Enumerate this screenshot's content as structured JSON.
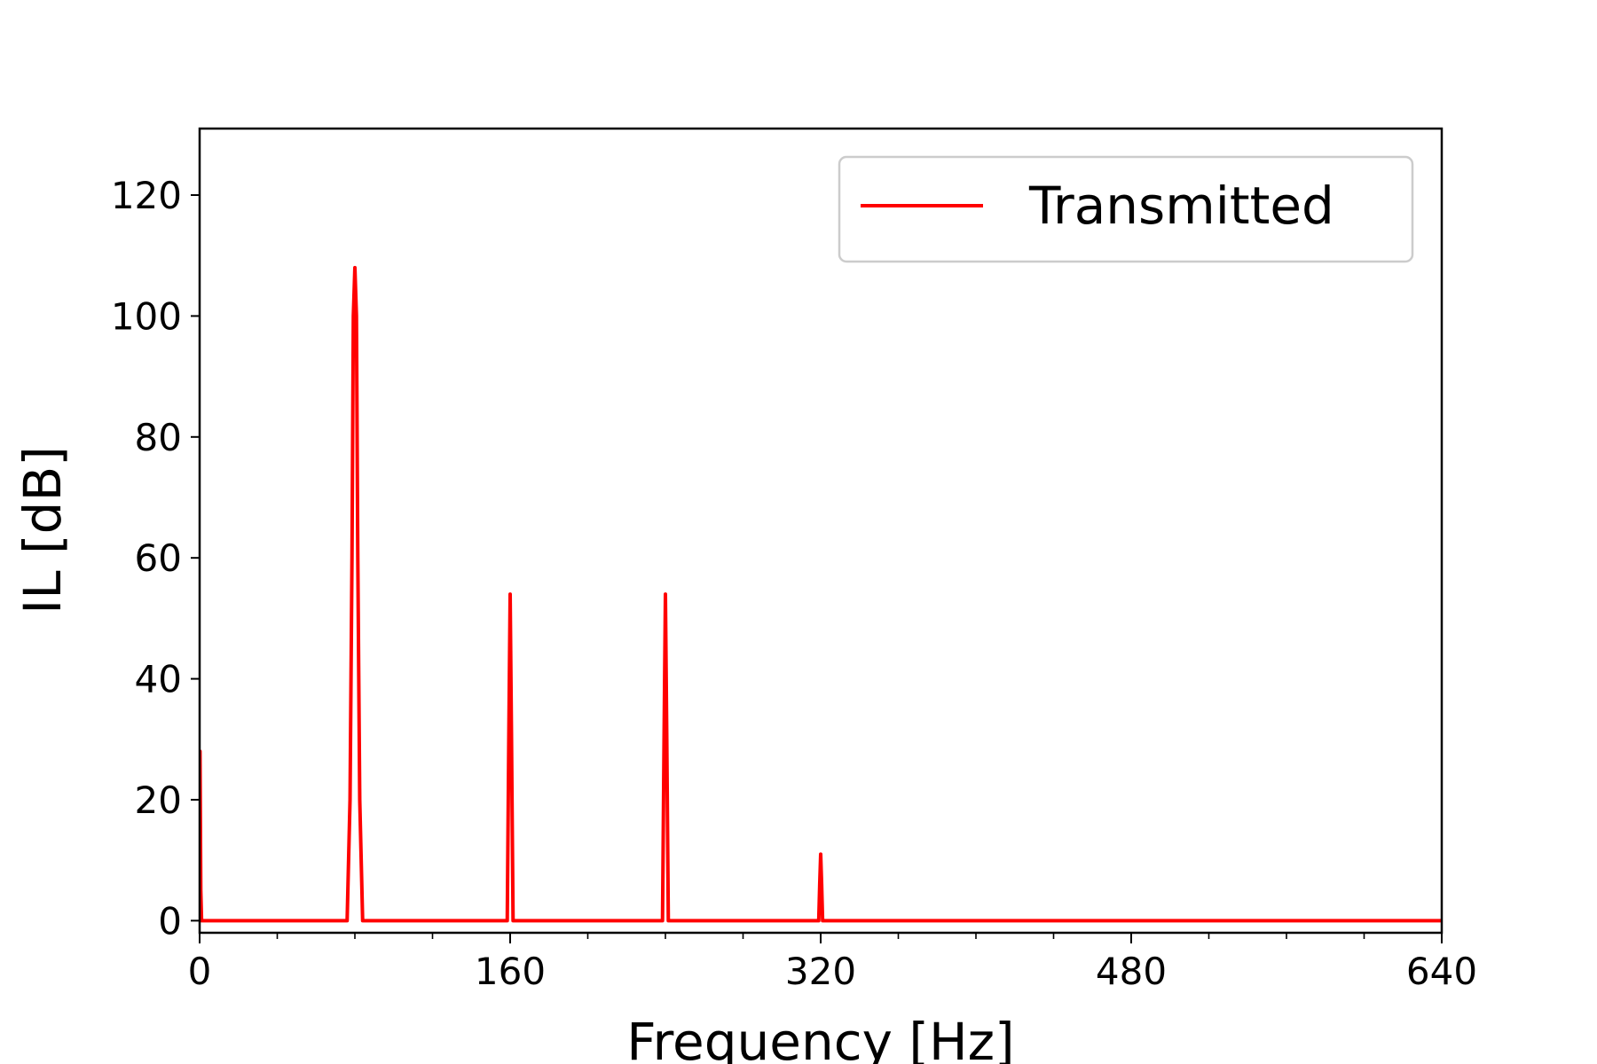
{
  "chart_data": {
    "type": "line",
    "xlabel": "Frequency [Hz]",
    "ylabel": "IL [dB]",
    "xlim": [
      0,
      640
    ],
    "ylim": [
      -2,
      131
    ],
    "x_ticks": [
      0,
      160,
      320,
      480,
      640
    ],
    "x_tick_labels": [
      "0",
      "160",
      "320",
      "480",
      "640"
    ],
    "x_minor_ticks": [
      40,
      80,
      120,
      200,
      240,
      280,
      360,
      400,
      440,
      520,
      560,
      600
    ],
    "y_ticks": [
      0,
      20,
      40,
      60,
      80,
      100,
      120
    ],
    "y_tick_labels": [
      "0",
      "20",
      "40",
      "60",
      "80",
      "100",
      "120"
    ],
    "grid": false,
    "legend_position": "top-right",
    "series": [
      {
        "name": "Transmitted",
        "color": "#ff0000",
        "x": [
          0,
          0.2,
          0.6,
          1.0,
          2,
          10,
          40,
          60,
          74,
          76,
          77.5,
          78.5,
          79.2,
          80,
          80.8,
          81.5,
          82.5,
          84,
          90,
          120,
          157.5,
          158.5,
          159.3,
          160,
          160.7,
          161.5,
          162.5,
          200,
          237.5,
          238.5,
          239.3,
          240,
          240.7,
          241.5,
          242.5,
          280,
          318,
          319,
          319.5,
          320,
          320.5,
          321,
          322,
          400,
          480,
          560,
          640
        ],
        "y": [
          0,
          28,
          5,
          0,
          0,
          0,
          0,
          0,
          0,
          0,
          20,
          60,
          100,
          108,
          100,
          60,
          20,
          0,
          0,
          0,
          0,
          0,
          30,
          54,
          30,
          0,
          0,
          0,
          0,
          0,
          30,
          54,
          30,
          0,
          0,
          0,
          0,
          0,
          6,
          11,
          6,
          0,
          0,
          0,
          0,
          0,
          0
        ]
      }
    ]
  }
}
